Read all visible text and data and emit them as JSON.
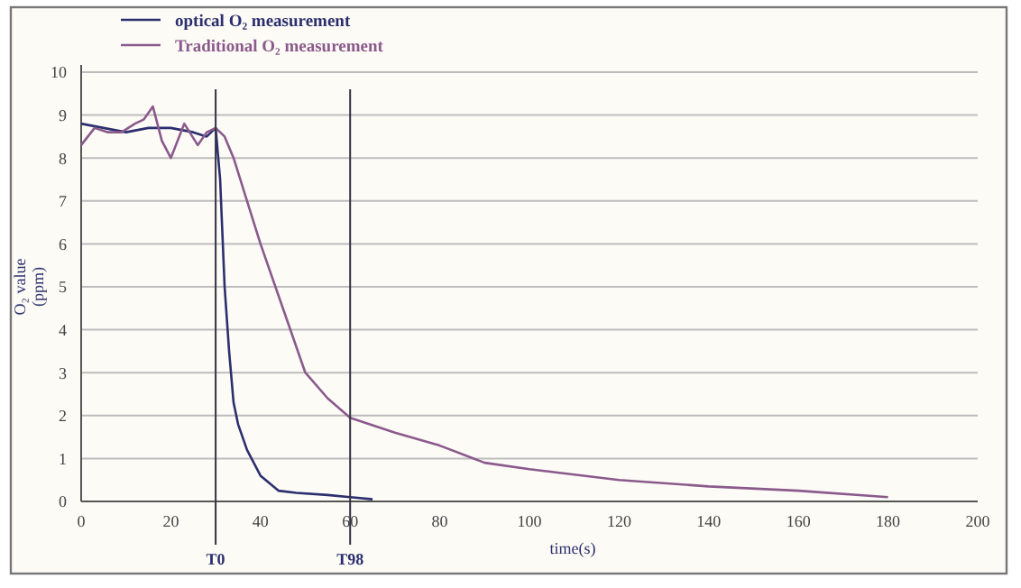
{
  "chart_data": {
    "type": "line",
    "xlabel": "time(s)",
    "ylabel": "O₂ value (ppm)",
    "xlim": [
      0,
      200
    ],
    "xticks": [
      0,
      20,
      40,
      60,
      80,
      100,
      120,
      140,
      160,
      180,
      200
    ],
    "ylim": [
      0,
      10
    ],
    "yticks": [
      0,
      1,
      2,
      3,
      4,
      5,
      6,
      7,
      8,
      9,
      10
    ],
    "grid": "y",
    "legend": "top left",
    "marker": "none",
    "line_style": "solid",
    "series": [
      {
        "name": "optical O₂ measurement",
        "color": "#2b2f6e",
        "x": [
          0,
          5,
          10,
          15,
          20,
          25,
          28,
          30,
          31,
          32,
          33,
          34,
          35,
          37,
          40,
          44,
          48,
          55,
          60,
          65
        ],
        "values": [
          8.8,
          8.7,
          8.6,
          8.7,
          8.7,
          8.6,
          8.5,
          8.7,
          7.5,
          5,
          3.5,
          2.3,
          1.8,
          1.2,
          0.6,
          0.25,
          0.2,
          0.15,
          0.1,
          0.05
        ]
      },
      {
        "name": "Traditional O₂ measurement",
        "color": "#8a5a8c",
        "x": [
          0,
          3,
          6,
          9,
          12,
          14,
          16,
          18,
          20,
          23,
          26,
          28,
          30,
          32,
          34,
          37,
          40,
          45,
          50,
          55,
          60,
          70,
          80,
          90,
          100,
          120,
          140,
          160,
          180
        ],
        "values": [
          8.3,
          8.7,
          8.6,
          8.6,
          8.8,
          8.9,
          9.2,
          8.4,
          8.0,
          8.8,
          8.3,
          8.6,
          8.7,
          8.5,
          8.0,
          7.0,
          6.0,
          4.5,
          3.0,
          2.4,
          1.95,
          1.6,
          1.3,
          0.9,
          0.75,
          0.5,
          0.35,
          0.25,
          0.1
        ]
      }
    ],
    "ref_lines": [
      {
        "axis": "x",
        "value": 30,
        "label": "T0",
        "color": "#333344"
      },
      {
        "axis": "x",
        "value": 60,
        "label": "T98",
        "color": "#333344"
      }
    ]
  }
}
